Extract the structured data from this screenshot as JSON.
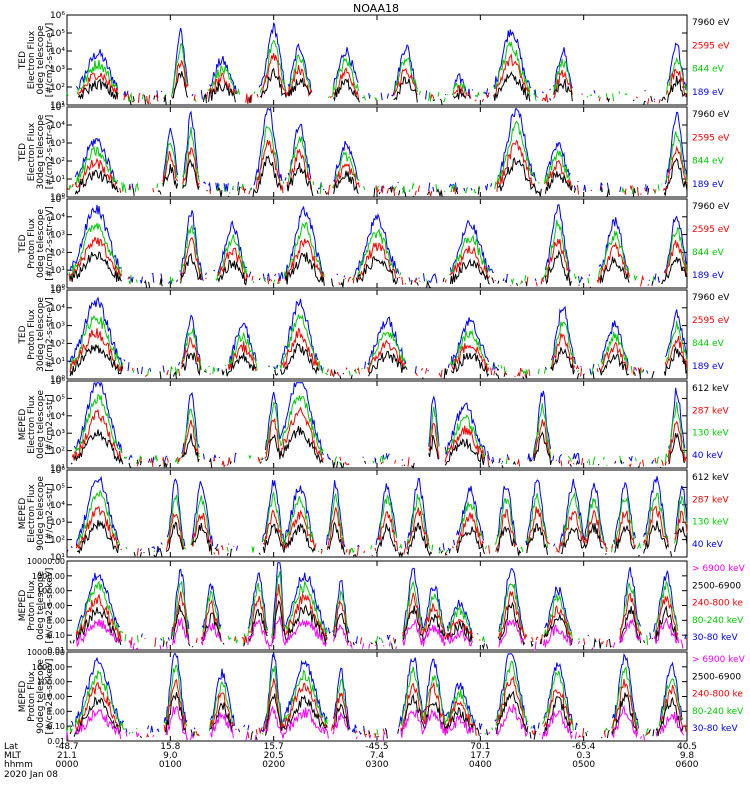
{
  "title": "NOAA18",
  "colors": {
    "blue": "#0000ff",
    "red": "#ff0000",
    "green": "#00cc00",
    "black": "#000000",
    "magenta": "#ff00ff"
  },
  "footer": {
    "row_labels": [
      "Lat",
      "MLT",
      "hhmm"
    ],
    "date": "2020 Jan 08",
    "columns": [
      {
        "lat": "-48.7",
        "mlt": "21.1",
        "hhmm": "0000"
      },
      {
        "lat": "15.8",
        "mlt": "9.0",
        "hhmm": "0100"
      },
      {
        "lat": "15.7",
        "mlt": "20.5",
        "hhmm": "0200"
      },
      {
        "lat": "-45.5",
        "mlt": "7.4",
        "hhmm": "0300"
      },
      {
        "lat": "70.1",
        "mlt": "17.7",
        "hhmm": "0400"
      },
      {
        "lat": "-65.4",
        "mlt": "0.3",
        "hhmm": "0500"
      },
      {
        "lat": "40.5",
        "mlt": "9.8",
        "hhmm": "0600"
      }
    ]
  },
  "chart_data": [
    {
      "type": "line",
      "scale": "log",
      "ylim": [
        10,
        1000000
      ],
      "ylabel": [
        "TED",
        "Electron Flux",
        "0deg telescope",
        "[#/cm2-s-str-eV]"
      ],
      "ticks": [
        {
          "v": 10,
          "label": "10¹"
        },
        {
          "v": 100,
          "label": "10²"
        },
        {
          "v": 1000,
          "label": "10³"
        },
        {
          "v": 10000,
          "label": "10⁴"
        },
        {
          "v": 100000,
          "label": "10⁵"
        },
        {
          "v": 1000000,
          "label": "10⁶"
        }
      ],
      "x_range_hours": [
        0,
        6
      ],
      "bursts": [
        {
          "c": 0.3,
          "w": 0.22,
          "peak": 2000
        },
        {
          "c": 1.1,
          "w": 0.08,
          "peak": 30000
        },
        {
          "c": 1.5,
          "w": 0.15,
          "peak": 800
        },
        {
          "c": 2.0,
          "w": 0.12,
          "peak": 60000
        },
        {
          "c": 2.25,
          "w": 0.12,
          "peak": 5000
        },
        {
          "c": 2.7,
          "w": 0.14,
          "peak": 3000
        },
        {
          "c": 3.28,
          "w": 0.12,
          "peak": 5000
        },
        {
          "c": 3.8,
          "w": 0.1,
          "peak": 80
        },
        {
          "c": 4.3,
          "w": 0.18,
          "peak": 40000
        },
        {
          "c": 4.8,
          "w": 0.1,
          "peak": 3000
        },
        {
          "c": 5.9,
          "w": 0.1,
          "peak": 5000
        }
      ],
      "series": [
        {
          "name": "7960 eV",
          "color": "#000000"
        },
        {
          "name": "2595 eV",
          "color": "#ff0000"
        },
        {
          "name": "844 eV",
          "color": "#00cc00"
        },
        {
          "name": "189 eV",
          "color": "#0000ff"
        }
      ]
    },
    {
      "type": "line",
      "scale": "log",
      "ylim": [
        1,
        100000
      ],
      "ylabel": [
        "TED",
        "Electron Flux",
        "30deg telescope",
        "[#/cm2-s-str-eV]"
      ],
      "ticks": [
        {
          "v": 1,
          "label": "10⁰"
        },
        {
          "v": 10,
          "label": "10¹"
        },
        {
          "v": 100,
          "label": "10²"
        },
        {
          "v": 1000,
          "label": "10³"
        },
        {
          "v": 10000,
          "label": "10⁴"
        },
        {
          "v": 100000,
          "label": "10⁵"
        }
      ],
      "x_range_hours": [
        0,
        6
      ],
      "bursts": [
        {
          "c": 0.28,
          "w": 0.22,
          "peak": 400
        },
        {
          "c": 1.0,
          "w": 0.08,
          "peak": 2000
        },
        {
          "c": 1.2,
          "w": 0.08,
          "peak": 10000
        },
        {
          "c": 1.95,
          "w": 0.12,
          "peak": 30000
        },
        {
          "c": 2.25,
          "w": 0.12,
          "peak": 3000
        },
        {
          "c": 2.7,
          "w": 0.14,
          "peak": 200
        },
        {
          "c": 4.35,
          "w": 0.18,
          "peak": 20000
        },
        {
          "c": 4.75,
          "w": 0.14,
          "peak": 300
        },
        {
          "c": 5.9,
          "w": 0.1,
          "peak": 10000
        }
      ],
      "series": [
        {
          "name": "7960 eV",
          "color": "#000000"
        },
        {
          "name": "2595 eV",
          "color": "#ff0000"
        },
        {
          "name": "844 eV",
          "color": "#00cc00"
        },
        {
          "name": "189 eV",
          "color": "#0000ff"
        }
      ]
    },
    {
      "type": "line",
      "scale": "log",
      "ylim": [
        1,
        100000
      ],
      "ylabel": [
        "TED",
        "Proton Flux",
        "0deg telescope",
        "[#/cm2-s-str-eV]"
      ],
      "ticks": [
        {
          "v": 1,
          "label": "10⁰"
        },
        {
          "v": 10,
          "label": "10¹"
        },
        {
          "v": 100,
          "label": "10²"
        },
        {
          "v": 1000,
          "label": "10³"
        },
        {
          "v": 10000,
          "label": "10⁴"
        },
        {
          "v": 100000,
          "label": "10⁵"
        }
      ],
      "x_range_hours": [
        0,
        6
      ],
      "bursts": [
        {
          "c": 0.28,
          "w": 0.25,
          "peak": 8000
        },
        {
          "c": 1.2,
          "w": 0.1,
          "peak": 5000
        },
        {
          "c": 1.6,
          "w": 0.15,
          "peak": 800
        },
        {
          "c": 2.3,
          "w": 0.18,
          "peak": 6000
        },
        {
          "c": 3.0,
          "w": 0.2,
          "peak": 2000
        },
        {
          "c": 3.9,
          "w": 0.2,
          "peak": 1000
        },
        {
          "c": 4.75,
          "w": 0.12,
          "peak": 8000
        },
        {
          "c": 5.3,
          "w": 0.15,
          "peak": 1500
        },
        {
          "c": 5.9,
          "w": 0.12,
          "peak": 3000
        }
      ],
      "series": [
        {
          "name": "7960 eV",
          "color": "#000000"
        },
        {
          "name": "2595 eV",
          "color": "#ff0000"
        },
        {
          "name": "844 eV",
          "color": "#00cc00"
        },
        {
          "name": "189 eV",
          "color": "#0000ff"
        }
      ]
    },
    {
      "type": "line",
      "scale": "log",
      "ylim": [
        1,
        100000
      ],
      "ylabel": [
        "TED",
        "Proton Flux",
        "30deg telescope",
        "[#/cm2-s-str-eV]"
      ],
      "ticks": [
        {
          "v": 1,
          "label": "10⁰"
        },
        {
          "v": 10,
          "label": "10¹"
        },
        {
          "v": 100,
          "label": "10²"
        },
        {
          "v": 1000,
          "label": "10³"
        },
        {
          "v": 10000,
          "label": "10⁴"
        },
        {
          "v": 100000,
          "label": "10⁵"
        }
      ],
      "x_range_hours": [
        0,
        6
      ],
      "bursts": [
        {
          "c": 0.28,
          "w": 0.25,
          "peak": 6000
        },
        {
          "c": 1.2,
          "w": 0.1,
          "peak": 800
        },
        {
          "c": 1.7,
          "w": 0.15,
          "peak": 300
        },
        {
          "c": 2.25,
          "w": 0.18,
          "peak": 6000
        },
        {
          "c": 3.1,
          "w": 0.2,
          "peak": 500
        },
        {
          "c": 3.9,
          "w": 0.2,
          "peak": 500
        },
        {
          "c": 4.8,
          "w": 0.12,
          "peak": 3000
        },
        {
          "c": 5.3,
          "w": 0.15,
          "peak": 300
        },
        {
          "c": 5.9,
          "w": 0.12,
          "peak": 1500
        }
      ],
      "series": [
        {
          "name": "7960 eV",
          "color": "#000000"
        },
        {
          "name": "2595 eV",
          "color": "#ff0000"
        },
        {
          "name": "844 eV",
          "color": "#00cc00"
        },
        {
          "name": "189 eV",
          "color": "#0000ff"
        }
      ]
    },
    {
      "type": "line",
      "scale": "log",
      "ylim": [
        10,
        1000000
      ],
      "ylabel": [
        "MEPED",
        "Electron Flux",
        "0deg telescope",
        "[#/cm2-s-str]"
      ],
      "ticks": [
        {
          "v": 10,
          "label": "10¹"
        },
        {
          "v": 100,
          "label": "10²"
        },
        {
          "v": 1000,
          "label": "10³"
        },
        {
          "v": 10000,
          "label": "10⁴"
        },
        {
          "v": 100000,
          "label": "10⁵"
        },
        {
          "v": 1000000,
          "label": "10⁶"
        }
      ],
      "x_range_hours": [
        0,
        6
      ],
      "bursts": [
        {
          "c": 0.3,
          "w": 0.22,
          "peak": 300000
        },
        {
          "c": 1.2,
          "w": 0.08,
          "peak": 50000
        },
        {
          "c": 2.0,
          "w": 0.08,
          "peak": 80000
        },
        {
          "c": 2.25,
          "w": 0.22,
          "peak": 500000
        },
        {
          "c": 3.55,
          "w": 0.06,
          "peak": 40000
        },
        {
          "c": 3.85,
          "w": 0.2,
          "peak": 10000
        },
        {
          "c": 4.6,
          "w": 0.08,
          "peak": 60000
        },
        {
          "c": 5.9,
          "w": 0.08,
          "peak": 80000
        }
      ],
      "series": [
        {
          "name": "612 keV",
          "color": "#000000"
        },
        {
          "name": "287 keV",
          "color": "#ff0000"
        },
        {
          "name": "130 keV",
          "color": "#00cc00"
        },
        {
          "name": "40 keV",
          "color": "#0000ff"
        }
      ]
    },
    {
      "type": "line",
      "scale": "log",
      "ylim": [
        10,
        1000000
      ],
      "ylabel": [
        "MEPED",
        "Electron Flux",
        "90deg telescope",
        "[#/cm2-s-str]"
      ],
      "ticks": [
        {
          "v": 10,
          "label": "10¹"
        },
        {
          "v": 100,
          "label": "10²"
        },
        {
          "v": 1000,
          "label": "10³"
        },
        {
          "v": 10000,
          "label": "10⁴"
        },
        {
          "v": 100000,
          "label": "10⁵"
        },
        {
          "v": 1000000,
          "label": "10⁶"
        }
      ],
      "x_range_hours": [
        0,
        6
      ],
      "bursts": [
        {
          "c": 0.3,
          "w": 0.2,
          "peak": 100000
        },
        {
          "c": 1.05,
          "w": 0.08,
          "peak": 80000
        },
        {
          "c": 1.3,
          "w": 0.1,
          "peak": 40000
        },
        {
          "c": 2.0,
          "w": 0.1,
          "peak": 50000
        },
        {
          "c": 2.25,
          "w": 0.15,
          "peak": 30000
        },
        {
          "c": 2.6,
          "w": 0.08,
          "peak": 50000
        },
        {
          "c": 3.1,
          "w": 0.1,
          "peak": 40000
        },
        {
          "c": 3.4,
          "w": 0.1,
          "peak": 60000
        },
        {
          "c": 3.9,
          "w": 0.14,
          "peak": 20000
        },
        {
          "c": 4.25,
          "w": 0.1,
          "peak": 40000
        },
        {
          "c": 4.55,
          "w": 0.1,
          "peak": 80000
        },
        {
          "c": 4.9,
          "w": 0.12,
          "peak": 50000
        },
        {
          "c": 5.1,
          "w": 0.1,
          "peak": 40000
        },
        {
          "c": 5.4,
          "w": 0.1,
          "peak": 50000
        },
        {
          "c": 5.7,
          "w": 0.12,
          "peak": 80000
        },
        {
          "c": 5.95,
          "w": 0.08,
          "peak": 40000
        }
      ],
      "series": [
        {
          "name": "612 keV",
          "color": "#000000"
        },
        {
          "name": "287 keV",
          "color": "#ff0000"
        },
        {
          "name": "130 keV",
          "color": "#00cc00"
        },
        {
          "name": "40 keV",
          "color": "#0000ff"
        }
      ]
    },
    {
      "type": "line",
      "scale": "log",
      "ylim": [
        0.01,
        10000
      ],
      "ylabel": [
        "MEPED",
        "Proton Flux",
        "0deg telescope",
        "[#/cm2-s-sr-keV]"
      ],
      "ticks": [
        {
          "v": 0.01,
          "label": "0.01"
        },
        {
          "v": 0.1,
          "label": "0.10"
        },
        {
          "v": 1,
          "label": "1.00"
        },
        {
          "v": 10,
          "label": "10.00"
        },
        {
          "v": 100,
          "label": "100.00"
        },
        {
          "v": 1000,
          "label": "1000.00"
        },
        {
          "v": 10000,
          "label": "10000.00"
        }
      ],
      "x_range_hours": [
        0,
        6
      ],
      "bursts": [
        {
          "c": 0.3,
          "w": 0.22,
          "peak": 200
        },
        {
          "c": 1.1,
          "w": 0.08,
          "peak": 500
        },
        {
          "c": 1.4,
          "w": 0.1,
          "peak": 40
        },
        {
          "c": 1.85,
          "w": 0.1,
          "peak": 200
        },
        {
          "c": 2.05,
          "w": 0.06,
          "peak": 3000
        },
        {
          "c": 2.3,
          "w": 0.22,
          "peak": 200
        },
        {
          "c": 2.65,
          "w": 0.08,
          "peak": 50
        },
        {
          "c": 3.35,
          "w": 0.1,
          "peak": 300
        },
        {
          "c": 3.55,
          "w": 0.12,
          "peak": 30
        },
        {
          "c": 3.8,
          "w": 0.15,
          "peak": 2
        },
        {
          "c": 4.3,
          "w": 0.12,
          "peak": 500
        },
        {
          "c": 4.75,
          "w": 0.14,
          "peak": 20
        },
        {
          "c": 5.45,
          "w": 0.1,
          "peak": 300
        },
        {
          "c": 5.8,
          "w": 0.12,
          "peak": 200
        }
      ],
      "series": [
        {
          "name": "> 6900 keV",
          "color": "#ff00ff"
        },
        {
          "name": "2500-6900",
          "color": "#000000"
        },
        {
          "name": "240-800 ke",
          "color": "#ff0000"
        },
        {
          "name": "80-240 keV",
          "color": "#00cc00"
        },
        {
          "name": "30-80 keV",
          "color": "#0000ff"
        }
      ]
    },
    {
      "type": "line",
      "scale": "log",
      "ylim": [
        0.01,
        10000
      ],
      "ylabel": [
        "MEPED",
        "Proton Flux",
        "90deg telescope",
        "[#/cm2-s-sr-keV]"
      ],
      "ticks": [
        {
          "v": 0.01,
          "label": "0.01"
        },
        {
          "v": 0.1,
          "label": "0.10"
        },
        {
          "v": 1,
          "label": "1.00"
        },
        {
          "v": 10,
          "label": "10.00"
        },
        {
          "v": 100,
          "label": "100.00"
        },
        {
          "v": 1000,
          "label": "1000.00"
        },
        {
          "v": 10000,
          "label": "10000.00"
        }
      ],
      "x_range_hours": [
        0,
        6
      ],
      "bursts": [
        {
          "c": 0.3,
          "w": 0.22,
          "peak": 300
        },
        {
          "c": 1.05,
          "w": 0.1,
          "peak": 1500
        },
        {
          "c": 1.5,
          "w": 0.12,
          "peak": 60
        },
        {
          "c": 2.0,
          "w": 0.08,
          "peak": 1000
        },
        {
          "c": 2.3,
          "w": 0.22,
          "peak": 300
        },
        {
          "c": 2.65,
          "w": 0.08,
          "peak": 100
        },
        {
          "c": 3.35,
          "w": 0.12,
          "peak": 700
        },
        {
          "c": 3.55,
          "w": 0.12,
          "peak": 300
        },
        {
          "c": 3.8,
          "w": 0.15,
          "peak": 10
        },
        {
          "c": 4.3,
          "w": 0.15,
          "peak": 2000
        },
        {
          "c": 4.75,
          "w": 0.14,
          "peak": 300
        },
        {
          "c": 5.4,
          "w": 0.12,
          "peak": 800
        },
        {
          "c": 5.85,
          "w": 0.12,
          "peak": 200
        }
      ],
      "series": [
        {
          "name": "> 6900 keV",
          "color": "#ff00ff"
        },
        {
          "name": "2500-6900",
          "color": "#000000"
        },
        {
          "name": "240-800 ke",
          "color": "#ff0000"
        },
        {
          "name": "80-240 keV",
          "color": "#00cc00"
        },
        {
          "name": "30-80 keV",
          "color": "#0000ff"
        }
      ]
    }
  ]
}
